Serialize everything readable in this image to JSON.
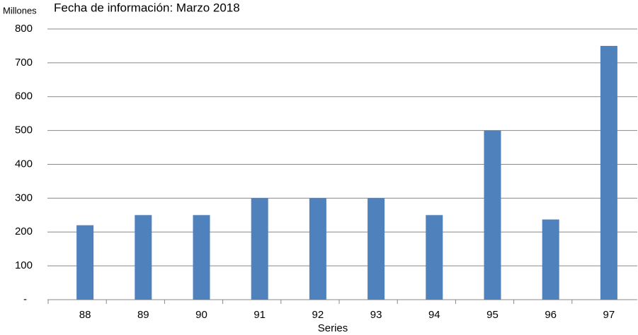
{
  "chart_data": {
    "type": "bar",
    "title": "Fecha de información: Marzo 2018",
    "y_label": "Millones",
    "x_label": "Series",
    "categories": [
      "88",
      "89",
      "90",
      "91",
      "92",
      "93",
      "94",
      "95",
      "96",
      "97"
    ],
    "values": [
      220,
      250,
      250,
      300,
      300,
      300,
      250,
      500,
      237,
      750
    ],
    "color": "#4f81bd",
    "ylim": [
      0,
      800
    ],
    "yticks": [
      {
        "value": 0,
        "label": "-"
      },
      100,
      200,
      300,
      400,
      500,
      600,
      700,
      800
    ],
    "grid": true
  }
}
